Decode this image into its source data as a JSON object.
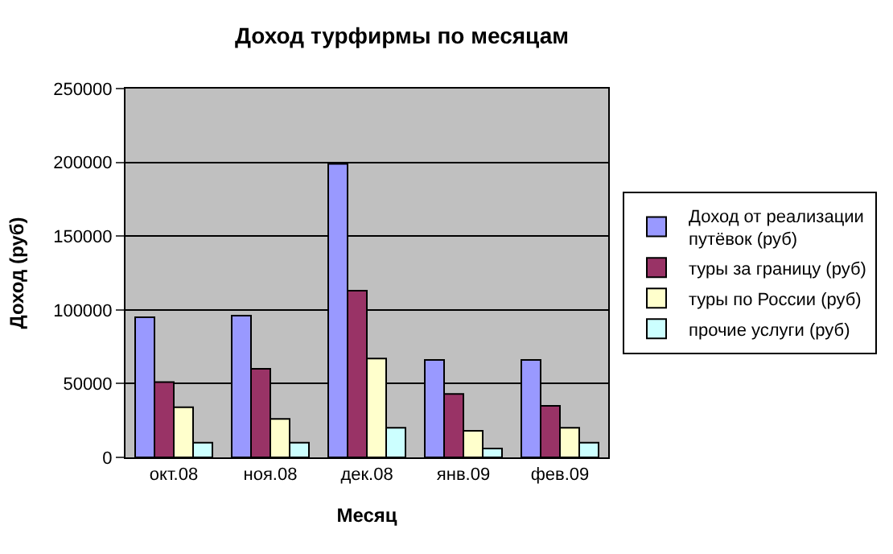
{
  "chart_data": {
    "type": "bar",
    "title": "Доход турфирмы по месяцам",
    "xlabel": "Месяц",
    "ylabel": "Доход (руб)",
    "categories": [
      "окт.08",
      "ноя.08",
      "дек.08",
      "янв.09",
      "фев.09"
    ],
    "series": [
      {
        "name": "Доход от реализации путёвок (руб)",
        "color": "#9999ff",
        "values": [
          95000,
          96000,
          199000,
          66000,
          66000
        ]
      },
      {
        "name": "туры за границу (руб)",
        "color": "#993366",
        "values": [
          51000,
          60000,
          113000,
          43000,
          35000
        ]
      },
      {
        "name": "туры по России (руб)",
        "color": "#ffffcc",
        "values": [
          34000,
          26000,
          67000,
          18000,
          20000
        ]
      },
      {
        "name": "прочие услуги (руб)",
        "color": "#ccffff",
        "values": [
          10000,
          10000,
          20000,
          6000,
          10000
        ]
      }
    ],
    "ylim": [
      0,
      250000
    ],
    "yticks": [
      0,
      50000,
      100000,
      150000,
      200000,
      250000
    ],
    "grid": "y",
    "legend": "right"
  }
}
